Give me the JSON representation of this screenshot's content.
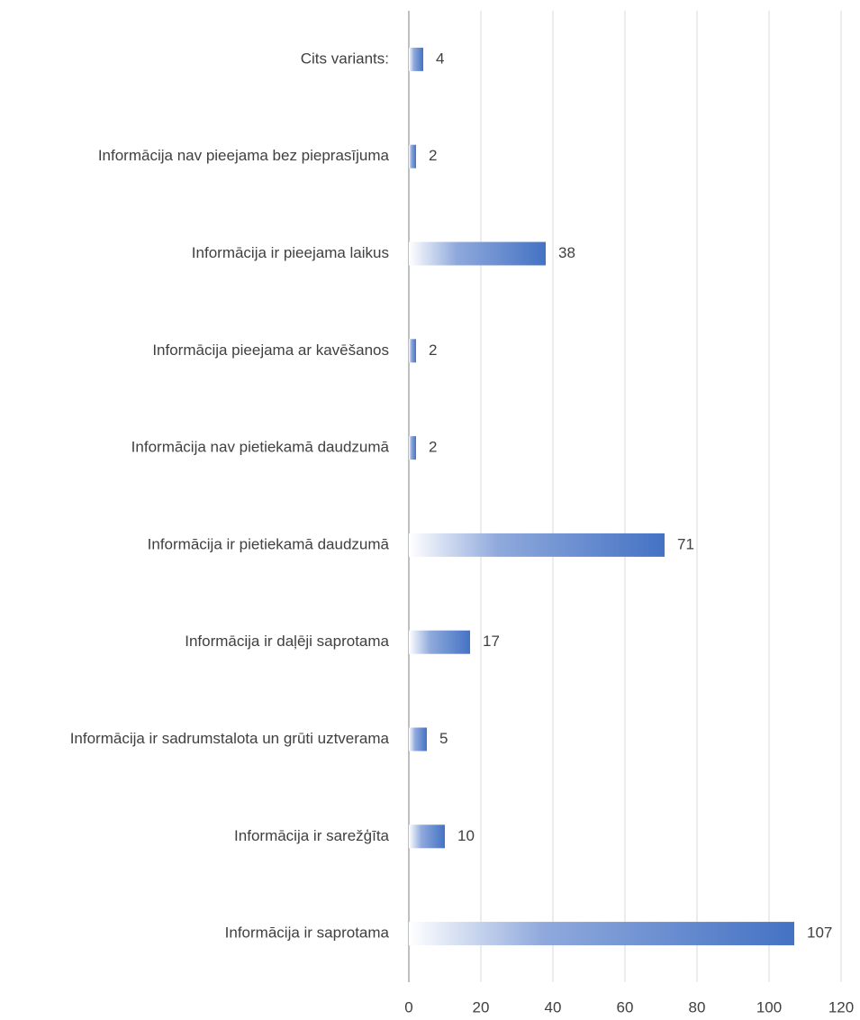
{
  "chart_data": {
    "type": "bar",
    "orientation": "horizontal",
    "categories": [
      "Cits variants:",
      "Informācija nav pieejama bez pieprasījuma",
      "Informācija ir pieejama laikus",
      "Informācija pieejama ar kavēšanos",
      "Informācija nav pietiekamā daudzumā",
      "Informācija ir pietiekamā daudzumā",
      "Informācija ir daļēji saprotama",
      "Informācija ir sadrumstalota un grūti uztverama",
      "Informācija ir sarežģīta",
      "Informācija ir saprotama"
    ],
    "values": [
      4,
      2,
      38,
      2,
      2,
      71,
      17,
      5,
      10,
      107
    ],
    "color": "#4472c4",
    "xlim": [
      0,
      120
    ],
    "xticks": [
      0,
      20,
      40,
      60,
      80,
      100,
      120
    ],
    "grid": true
  }
}
